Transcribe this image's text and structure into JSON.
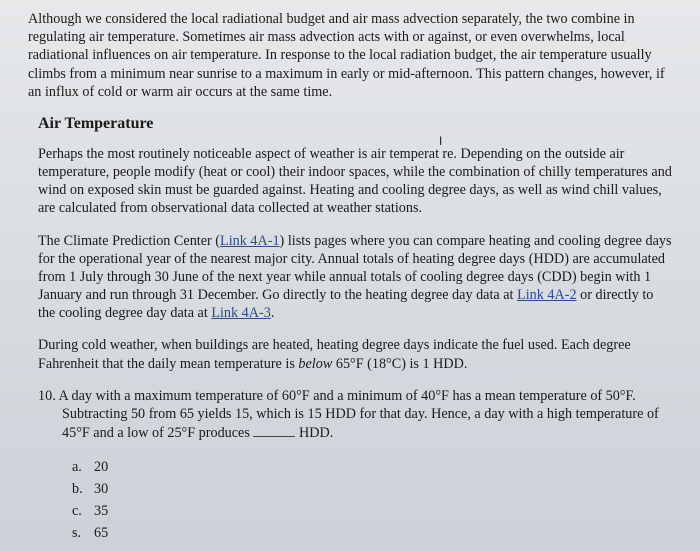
{
  "intro_para": "Although we considered the local radiational budget and air mass advection separately, the two combine in regulating air temperature. Sometimes air mass advection acts with or against, or even overwhelms, local radiational influences on air temperature. In response to the local radiation budget, the air temperature usually climbs from a minimum near sunrise to a maximum in early or mid-afternoon. This pattern changes, however, if an influx of cold or warm air occurs at the same time.",
  "heading": "Air Temperature",
  "para2_a": "Perhaps the most routinely noticeable aspect of weather is air temperat",
  "cursor_glyph": "I",
  "para2_b": "re. Depending on the outside air temperature, people modify (heat or cool) their indoor spaces, while the combination of chilly temperatures and wind on exposed skin must be guarded against. Heating and cooling degree days, as well as wind chill values, are calculated from observational data collected at weather stations.",
  "para3_a": "The Climate Prediction Center (",
  "link1": "Link 4A-1",
  "para3_b": ") lists pages where you can compare heating and cooling degree days for the operational year of the nearest major city. Annual totals of heating degree days (HDD) are accumulated from 1 July through 30 June of the next year while annual totals of cooling degree days (CDD) begin with 1 January and run through 31 December. Go directly to the heating degree day data at ",
  "link2": "Link 4A-2",
  "para3_c": " or directly to the cooling degree day data at ",
  "link3": "Link 4A-3",
  "para3_d": ".",
  "para4": "During cold weather, when buildings are heated, heating degree days indicate the fuel used. Each degree Fahrenheit that the daily mean temperature is ",
  "para4_italic": "below",
  "para4_b": " 65°F (18°C) is 1 HDD.",
  "q10_num": "10. ",
  "q10_a": "A day with a maximum temperature of 60°F and a minimum of 40°F has a mean temperature of 50°F. Subtracting 50 from 65 yields 15, which is 15 HDD for that day. Hence, a day with a high temperature of 45°F and a low of 25°F produces ",
  "q10_b": " HDD.",
  "options": [
    {
      "label": "a.",
      "value": "20"
    },
    {
      "label": "b.",
      "value": "30"
    },
    {
      "label": "c.",
      "value": "35"
    },
    {
      "label": "s.",
      "value": "65"
    }
  ]
}
